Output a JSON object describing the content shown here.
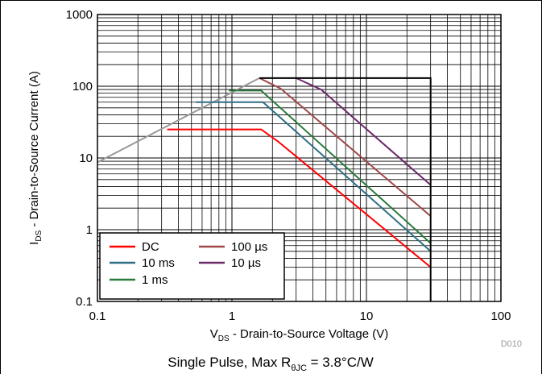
{
  "chart_data": {
    "type": "line",
    "x_scale": "log",
    "y_scale": "log",
    "xlim": [
      0.1,
      100
    ],
    "ylim": [
      0.1,
      1000
    ],
    "x_ticks": [
      {
        "value": 0.1,
        "label": "0.1"
      },
      {
        "value": 1,
        "label": "1"
      },
      {
        "value": 10,
        "label": "10"
      },
      {
        "value": 100,
        "label": "100"
      }
    ],
    "y_ticks": [
      {
        "value": 0.1,
        "label": "0.1"
      },
      {
        "value": 1,
        "label": "1"
      },
      {
        "value": 10,
        "label": "10"
      },
      {
        "value": 100,
        "label": "100"
      },
      {
        "value": 1000,
        "label": "1000"
      }
    ],
    "grid": true,
    "xlabel": {
      "main": "V",
      "sub": "DS",
      "rest": " - Drain-to-Source Voltage (V)"
    },
    "ylabel": {
      "main": "I",
      "sub": "DS",
      "rest": " - Drain-to-Source Current (A)"
    },
    "caption": {
      "main": "Single Pulse, Max R",
      "sub": "θJC",
      "rest": " = 3.8°C/W"
    },
    "figure_id": "D010",
    "legend_position": "bottom-left",
    "boundary": {
      "color": "#000000",
      "x": [
        1.6,
        30,
        30
      ],
      "y": [
        130,
        130,
        0.1
      ]
    },
    "rdson_limit": {
      "color": "#999999",
      "x": [
        0.1,
        1.6
      ],
      "y": [
        8.7,
        130
      ]
    },
    "series": [
      {
        "name": "DC",
        "color": "#ff0000",
        "x": [
          0.33,
          1.65,
          2.2,
          30
        ],
        "y": [
          25,
          25,
          17,
          0.3
        ]
      },
      {
        "name": "10 ms",
        "color": "#2e6f86",
        "x": [
          0.54,
          1.7,
          30
        ],
        "y": [
          60,
          60,
          0.5
        ]
      },
      {
        "name": "1 ms",
        "color": "#2a7a3c",
        "x": [
          0.95,
          1.65,
          30
        ],
        "y": [
          87,
          87,
          0.65
        ]
      },
      {
        "name": "100 µs",
        "color": "#a04848",
        "x": [
          1.6,
          2.3,
          30
        ],
        "y": [
          130,
          93,
          1.55
        ]
      },
      {
        "name": "10 µs",
        "color": "#6a2a6a",
        "x": [
          3.0,
          4.6,
          30
        ],
        "y": [
          130,
          90,
          4.2
        ]
      }
    ]
  }
}
